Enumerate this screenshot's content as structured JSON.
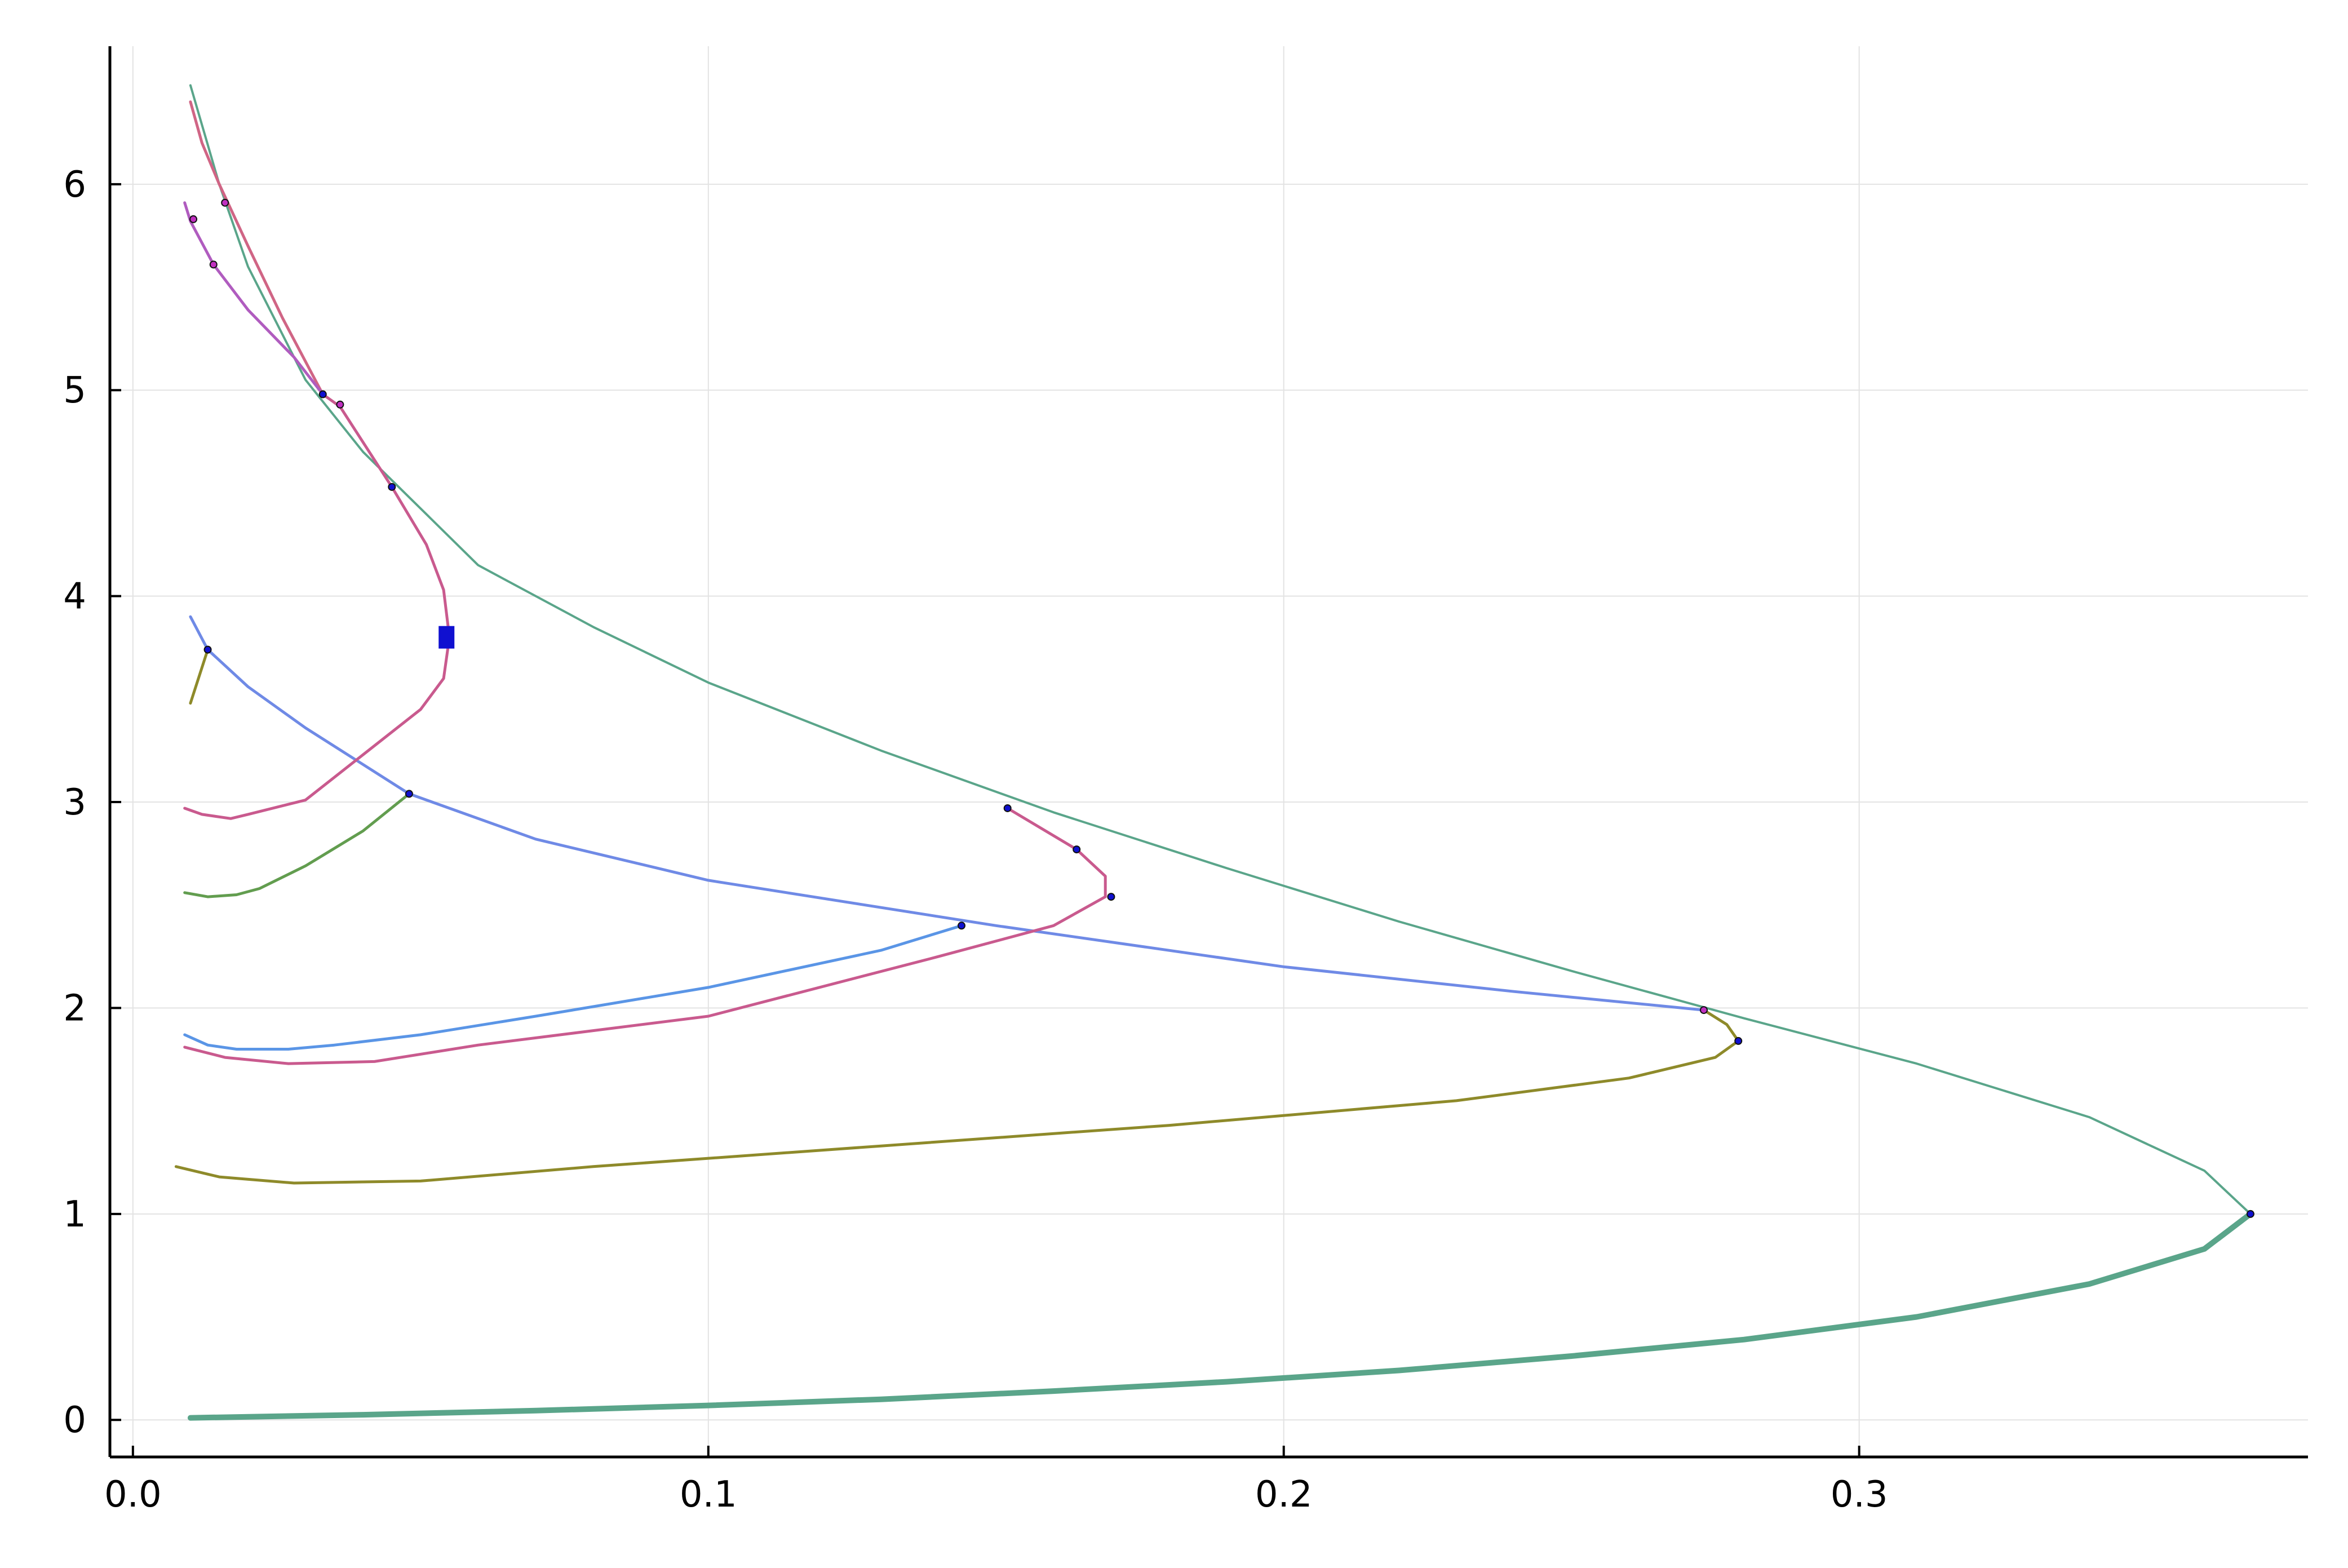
{
  "chart_data": {
    "type": "line",
    "title": "",
    "xlabel": "",
    "ylabel": "",
    "xlim": [
      -0.004,
      0.378
    ],
    "ylim": [
      -0.18,
      6.67
    ],
    "grid": true,
    "legend": "none",
    "x_ticks": [
      {
        "value": 0.0,
        "label": "0.0"
      },
      {
        "value": 0.1,
        "label": "0.1"
      },
      {
        "value": 0.2,
        "label": "0.2"
      },
      {
        "value": 0.3,
        "label": "0.3"
      }
    ],
    "y_ticks": [
      {
        "value": 0,
        "label": "0"
      },
      {
        "value": 1,
        "label": "1"
      },
      {
        "value": 2,
        "label": "2"
      },
      {
        "value": 3,
        "label": "3"
      },
      {
        "value": 4,
        "label": "4"
      },
      {
        "value": 5,
        "label": "5"
      },
      {
        "value": 6,
        "label": "6"
      }
    ],
    "series": [
      {
        "color": "#5aa58a",
        "width": 4,
        "x": [
          0.01,
          0.015,
          0.02,
          0.03,
          0.04,
          0.06,
          0.08,
          0.1,
          0.13,
          0.16,
          0.19,
          0.22,
          0.25,
          0.28,
          0.31,
          0.34,
          0.36,
          0.368
        ],
        "y": [
          6.48,
          6.0,
          5.6,
          5.05,
          4.7,
          4.15,
          3.85,
          3.58,
          3.25,
          2.95,
          2.68,
          2.42,
          2.18,
          1.95,
          1.73,
          1.47,
          1.21,
          1.0
        ]
      },
      {
        "color": "#5aa58a",
        "width": 10,
        "x": [
          0.368,
          0.36,
          0.34,
          0.31,
          0.28,
          0.25,
          0.22,
          0.19,
          0.16,
          0.13,
          0.1,
          0.07,
          0.04,
          0.01
        ],
        "y": [
          1.0,
          0.83,
          0.66,
          0.5,
          0.39,
          0.31,
          0.24,
          0.185,
          0.14,
          0.1,
          0.07,
          0.045,
          0.025,
          0.01
        ]
      },
      {
        "color": "#8e8a2a",
        "width": 5,
        "x": [
          0.273,
          0.277,
          0.279,
          0.275,
          0.26,
          0.23,
          0.18,
          0.13,
          0.08,
          0.05,
          0.028,
          0.015,
          0.0075
        ],
        "y": [
          1.99,
          1.92,
          1.84,
          1.76,
          1.66,
          1.55,
          1.43,
          1.33,
          1.23,
          1.16,
          1.15,
          1.18,
          1.23
        ]
      },
      {
        "color": "#6f8ae6",
        "width": 5,
        "x": [
          0.01,
          0.013,
          0.02,
          0.03,
          0.048,
          0.07,
          0.1,
          0.15,
          0.2,
          0.24,
          0.273
        ],
        "y": [
          3.9,
          3.74,
          3.56,
          3.36,
          3.04,
          2.82,
          2.62,
          2.4,
          2.2,
          2.08,
          1.99
        ]
      },
      {
        "color": "#8e8a2a",
        "width": 5,
        "x": [
          0.01,
          0.013
        ],
        "y": [
          3.48,
          3.74
        ]
      },
      {
        "color": "#c95a8e",
        "width": 5,
        "x": [
          0.152,
          0.164,
          0.169,
          0.169,
          0.16,
          0.14,
          0.1,
          0.06,
          0.042,
          0.027,
          0.016,
          0.009
        ],
        "y": [
          2.97,
          2.77,
          2.64,
          2.54,
          2.4,
          2.25,
          1.96,
          1.82,
          1.74,
          1.73,
          1.76,
          1.81
        ]
      },
      {
        "color": "#5a95e6",
        "width": 5,
        "x": [
          0.144,
          0.13,
          0.1,
          0.07,
          0.05,
          0.035,
          0.027,
          0.018,
          0.013,
          0.009
        ],
        "y": [
          2.4,
          2.28,
          2.1,
          1.96,
          1.87,
          1.82,
          1.8,
          1.8,
          1.82,
          1.87
        ]
      },
      {
        "color": "#d06585",
        "width": 5,
        "x": [
          0.01,
          0.012,
          0.015,
          0.02,
          0.026,
          0.033
        ],
        "y": [
          6.4,
          6.2,
          6.0,
          5.7,
          5.35,
          4.98
        ]
      },
      {
        "color": "#c95a8e",
        "width": 5,
        "x": [
          0.033,
          0.036,
          0.045,
          0.051,
          0.054,
          0.055,
          0.054,
          0.05,
          0.04,
          0.03,
          0.02,
          0.017,
          0.012,
          0.009
        ],
        "y": [
          4.98,
          4.92,
          4.53,
          4.25,
          4.03,
          3.8,
          3.6,
          3.45,
          3.23,
          3.01,
          2.94,
          2.92,
          2.94,
          2.97
        ]
      },
      {
        "color": "#b05cbf",
        "width": 5,
        "x": [
          0.009,
          0.01,
          0.014,
          0.02,
          0.028,
          0.033
        ],
        "y": [
          5.91,
          5.82,
          5.61,
          5.39,
          5.16,
          4.98
        ]
      },
      {
        "color": "#629d4f",
        "width": 5,
        "x": [
          0.048,
          0.04,
          0.03,
          0.022,
          0.018,
          0.013,
          0.009
        ],
        "y": [
          3.04,
          2.86,
          2.69,
          2.58,
          2.55,
          2.54,
          2.56
        ]
      }
    ],
    "markers": [
      {
        "x": 0.016,
        "y": 5.91,
        "color": "#c030c0"
      },
      {
        "x": 0.0105,
        "y": 5.83,
        "color": "#c030c0"
      },
      {
        "x": 0.014,
        "y": 5.61,
        "color": "#c030c0"
      },
      {
        "x": 0.033,
        "y": 4.98,
        "color": "#1010d0"
      },
      {
        "x": 0.036,
        "y": 4.93,
        "color": "#c030c0"
      },
      {
        "x": 0.045,
        "y": 4.53,
        "color": "#1010d0"
      },
      {
        "x": 0.013,
        "y": 3.74,
        "color": "#1010d0"
      },
      {
        "x": 0.048,
        "y": 3.04,
        "color": "#1010d0"
      },
      {
        "x": 0.152,
        "y": 2.97,
        "color": "#1010d0"
      },
      {
        "x": 0.164,
        "y": 2.77,
        "color": "#1010d0"
      },
      {
        "x": 0.17,
        "y": 2.54,
        "color": "#1010d0"
      },
      {
        "x": 0.144,
        "y": 2.4,
        "color": "#1010d0"
      },
      {
        "x": 0.273,
        "y": 1.99,
        "color": "#c030c0"
      },
      {
        "x": 0.279,
        "y": 1.84,
        "color": "#1010d0"
      },
      {
        "x": 0.368,
        "y": 1.0,
        "color": "#1010d0"
      }
    ],
    "square_markers": [
      {
        "x": 0.0545,
        "y": 3.8,
        "color": "#1010d0"
      }
    ]
  }
}
